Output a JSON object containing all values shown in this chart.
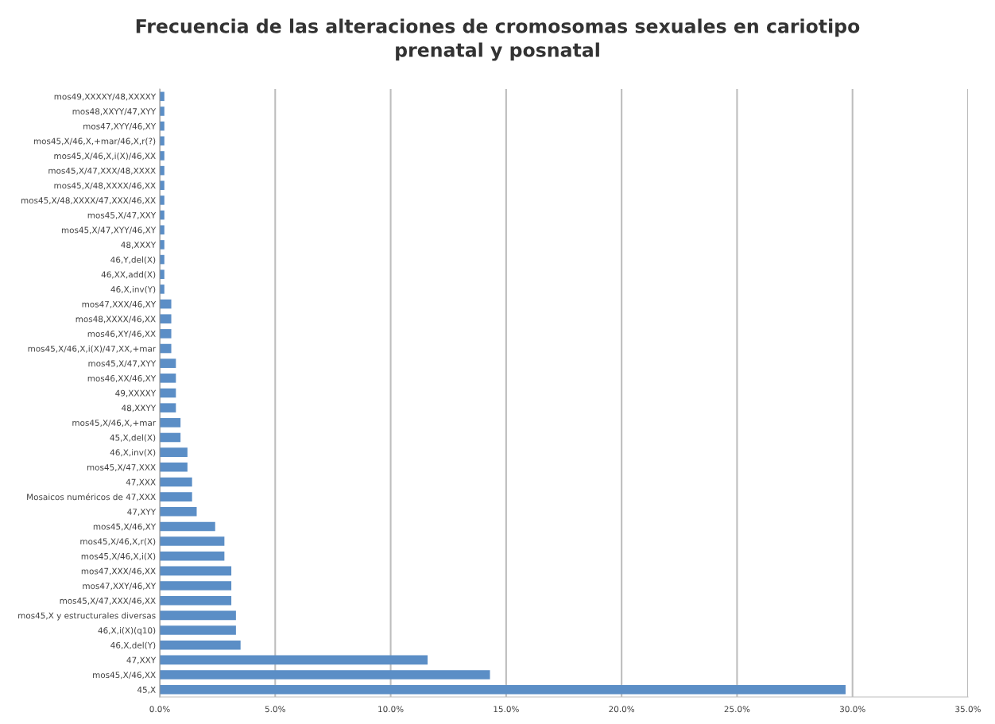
{
  "chart_data": {
    "type": "bar",
    "orientation": "horizontal",
    "title": "Frecuencia de las alteraciones de cromosomas sexuales en cariotipo\nprenatal y posnatal",
    "categories": [
      "mos49,XXXXY/48,XXXXY",
      "mos48,XXYY/47,XYY",
      "mos47,XYY/46,XY",
      "mos45,X/46,X,+mar/46,X,r(?)",
      "mos45,X/46,X,i(X)/46,XX",
      "mos45,X/47,XXX/48,XXXX",
      "mos45,X/48,XXXX/46,XX",
      "mos45,X/48,XXXX/47,XXX/46,XX",
      "mos45,X/47,XXY",
      "mos45,X/47,XYY/46,XY",
      "48,XXXY",
      "46,Y,del(X)",
      "46,XX,add(X)",
      "46,X,inv(Y)",
      "mos47,XXX/46,XY",
      "mos48,XXXX/46,XX",
      "mos46,XY/46,XX",
      "mos45,X/46,X,i(X)/47,XX,+mar",
      "mos45,X/47,XYY",
      "mos46,XX/46,XY",
      "49,XXXXY",
      "48,XXYY",
      "mos45,X/46,X,+mar",
      "45,X,del(X)",
      "46,X,inv(X)",
      "mos45,X/47,XXX",
      "47,XXX",
      "Mosaicos numéricos de 47,XXX",
      "47,XYY",
      "mos45,X/46,XY",
      "mos45,X/46,X,r(X)",
      "mos45,X/46,X,i(X)",
      "mos47,XXX/46,XX",
      "mos47,XXY/46,XY",
      "mos45,X/47,XXX/46,XX",
      "mos45,X y estructurales diversas",
      "46,X,i(X)(q10)",
      "46,X,del(Y)",
      "47,XXY",
      "mos45,X/46,XX",
      "45,X"
    ],
    "values": [
      0.2,
      0.2,
      0.2,
      0.2,
      0.2,
      0.2,
      0.2,
      0.2,
      0.2,
      0.2,
      0.2,
      0.2,
      0.2,
      0.2,
      0.5,
      0.5,
      0.5,
      0.5,
      0.7,
      0.7,
      0.7,
      0.7,
      0.9,
      0.9,
      1.2,
      1.2,
      1.4,
      1.4,
      1.6,
      2.4,
      2.8,
      2.8,
      3.1,
      3.1,
      3.1,
      3.3,
      3.3,
      3.5,
      11.6,
      14.3,
      29.7
    ],
    "color": "#5b8ec6",
    "xlim": [
      0,
      35
    ],
    "xticks": [
      {
        "value": 0,
        "label": "0.0%"
      },
      {
        "value": 5,
        "label": "5.0%"
      },
      {
        "value": 10,
        "label": "10.0%"
      },
      {
        "value": 15,
        "label": "15.0%"
      },
      {
        "value": 20,
        "label": "20.0%"
      },
      {
        "value": 25,
        "label": "25.0%"
      },
      {
        "value": 30,
        "label": "30.0%"
      },
      {
        "value": 35,
        "label": "35.0%"
      }
    ],
    "grid": "x"
  }
}
